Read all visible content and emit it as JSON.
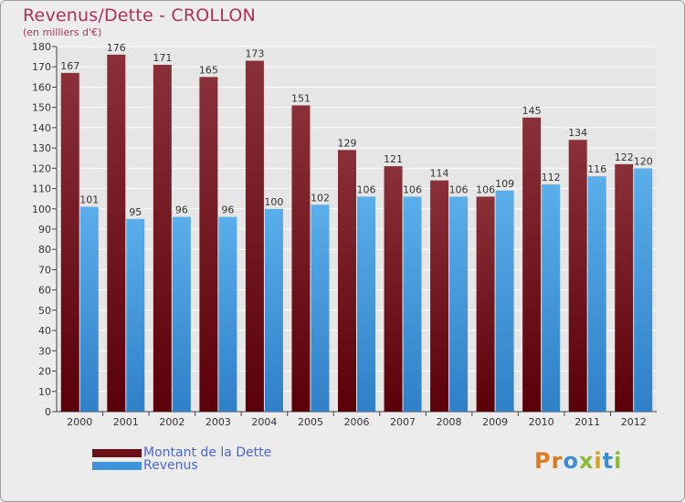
{
  "title": "Revenus/Dette - CROLLON",
  "subtitle": "(en milliers d'€)",
  "logo_text": "Proxiti",
  "colors": {
    "dette_top": "#8a3038",
    "dette_bottom": "#5a0008",
    "revenus_top": "#5aaeea",
    "revenus_bottom": "#2f80c8",
    "grid": "#ffffff",
    "plot_bg": "#e6e6e6"
  },
  "chart_data": {
    "type": "bar",
    "title": "Revenus/Dette - CROLLON",
    "subtitle": "(en milliers d'€)",
    "categories": [
      "2000",
      "2001",
      "2002",
      "2003",
      "2004",
      "2005",
      "2006",
      "2007",
      "2008",
      "2009",
      "2010",
      "2011",
      "2012"
    ],
    "series": [
      {
        "name": "Montant de la Dette",
        "values": [
          167,
          176,
          171,
          165,
          173,
          151,
          129,
          121,
          114,
          106,
          145,
          134,
          122
        ]
      },
      {
        "name": "Revenus",
        "values": [
          101,
          95,
          96,
          96,
          100,
          102,
          106,
          106,
          106,
          109,
          112,
          116,
          120
        ]
      }
    ],
    "ylim": [
      0,
      180
    ],
    "ytick_step": 10,
    "grid": true,
    "xlabel": "",
    "ylabel": "",
    "legend_position": "bottom-left"
  }
}
